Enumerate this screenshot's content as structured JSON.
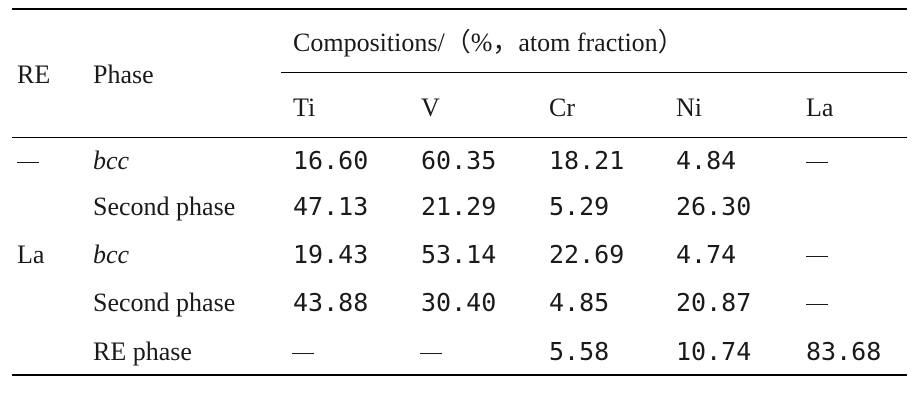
{
  "table": {
    "header": {
      "re": "RE",
      "phase": "Phase",
      "compositions": "Compositions/（%，atom fraction）",
      "elements": [
        "Ti",
        "V",
        "Cr",
        "Ni",
        "La"
      ]
    },
    "rows": [
      {
        "re": "—",
        "phase": "bcc",
        "phase_italic": true,
        "values": [
          "16.60",
          "60.35",
          "18.21",
          "4.84",
          "—"
        ]
      },
      {
        "re": "",
        "phase": "Second phase",
        "phase_italic": false,
        "values": [
          "47.13",
          "21.29",
          "5.29",
          "26.30",
          ""
        ]
      },
      {
        "re": "La",
        "phase": "bcc",
        "phase_italic": true,
        "values": [
          "19.43",
          "53.14",
          "22.69",
          "4.74",
          "—"
        ]
      },
      {
        "re": "",
        "phase": "Second phase",
        "phase_italic": false,
        "values": [
          "43.88",
          "30.40",
          "4.85",
          "20.87",
          "—"
        ]
      },
      {
        "re": "",
        "phase": "RE phase",
        "phase_italic": false,
        "values": [
          "—",
          "—",
          "5.58",
          "10.74",
          "83.68"
        ]
      }
    ]
  }
}
